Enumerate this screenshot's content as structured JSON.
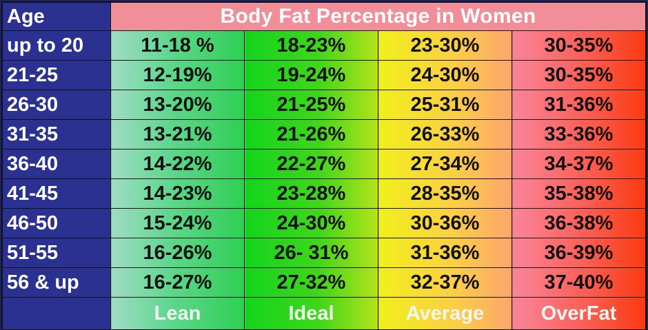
{
  "chart_data": {
    "type": "table",
    "title": "Body Fat Percentage in Women",
    "row_header": "Age",
    "columns": [
      "Lean",
      "Ideal",
      "Average",
      "OverFat"
    ],
    "rows": [
      {
        "age": "up to 20",
        "values": [
          "11-18 %",
          "18-23%",
          "23-30%",
          "30-35%"
        ]
      },
      {
        "age": "21-25",
        "values": [
          "12-19%",
          "19-24%",
          "24-30%",
          "30-35%"
        ]
      },
      {
        "age": "26-30",
        "values": [
          "13-20%",
          "21-25%",
          "25-31%",
          "31-36%"
        ]
      },
      {
        "age": "31-35",
        "values": [
          "13-21%",
          "21-26%",
          "26-33%",
          "33-36%"
        ]
      },
      {
        "age": "36-40",
        "values": [
          "14-22%",
          "22-27%",
          "27-34%",
          "34-37%"
        ]
      },
      {
        "age": "41-45",
        "values": [
          "14-23%",
          "23-28%",
          "28-35%",
          "35-38%"
        ]
      },
      {
        "age": "46-50",
        "values": [
          "15-24%",
          "24-30%",
          "30-36%",
          "36-38%"
        ]
      },
      {
        "age": "51-55",
        "values": [
          "16-26%",
          "26- 31%",
          "31-36%",
          "36-39%"
        ]
      },
      {
        "age": "56 & up",
        "values": [
          "16-27%",
          "27-32%",
          "32-37%",
          "37-40%"
        ]
      }
    ],
    "colors": {
      "age_column": "#2b3190",
      "title_band": "#f28e98",
      "lean": "#5ed68c",
      "ideal": "#14d41e",
      "average": "#f1ef1c",
      "overfat": "#fa3a10"
    }
  }
}
